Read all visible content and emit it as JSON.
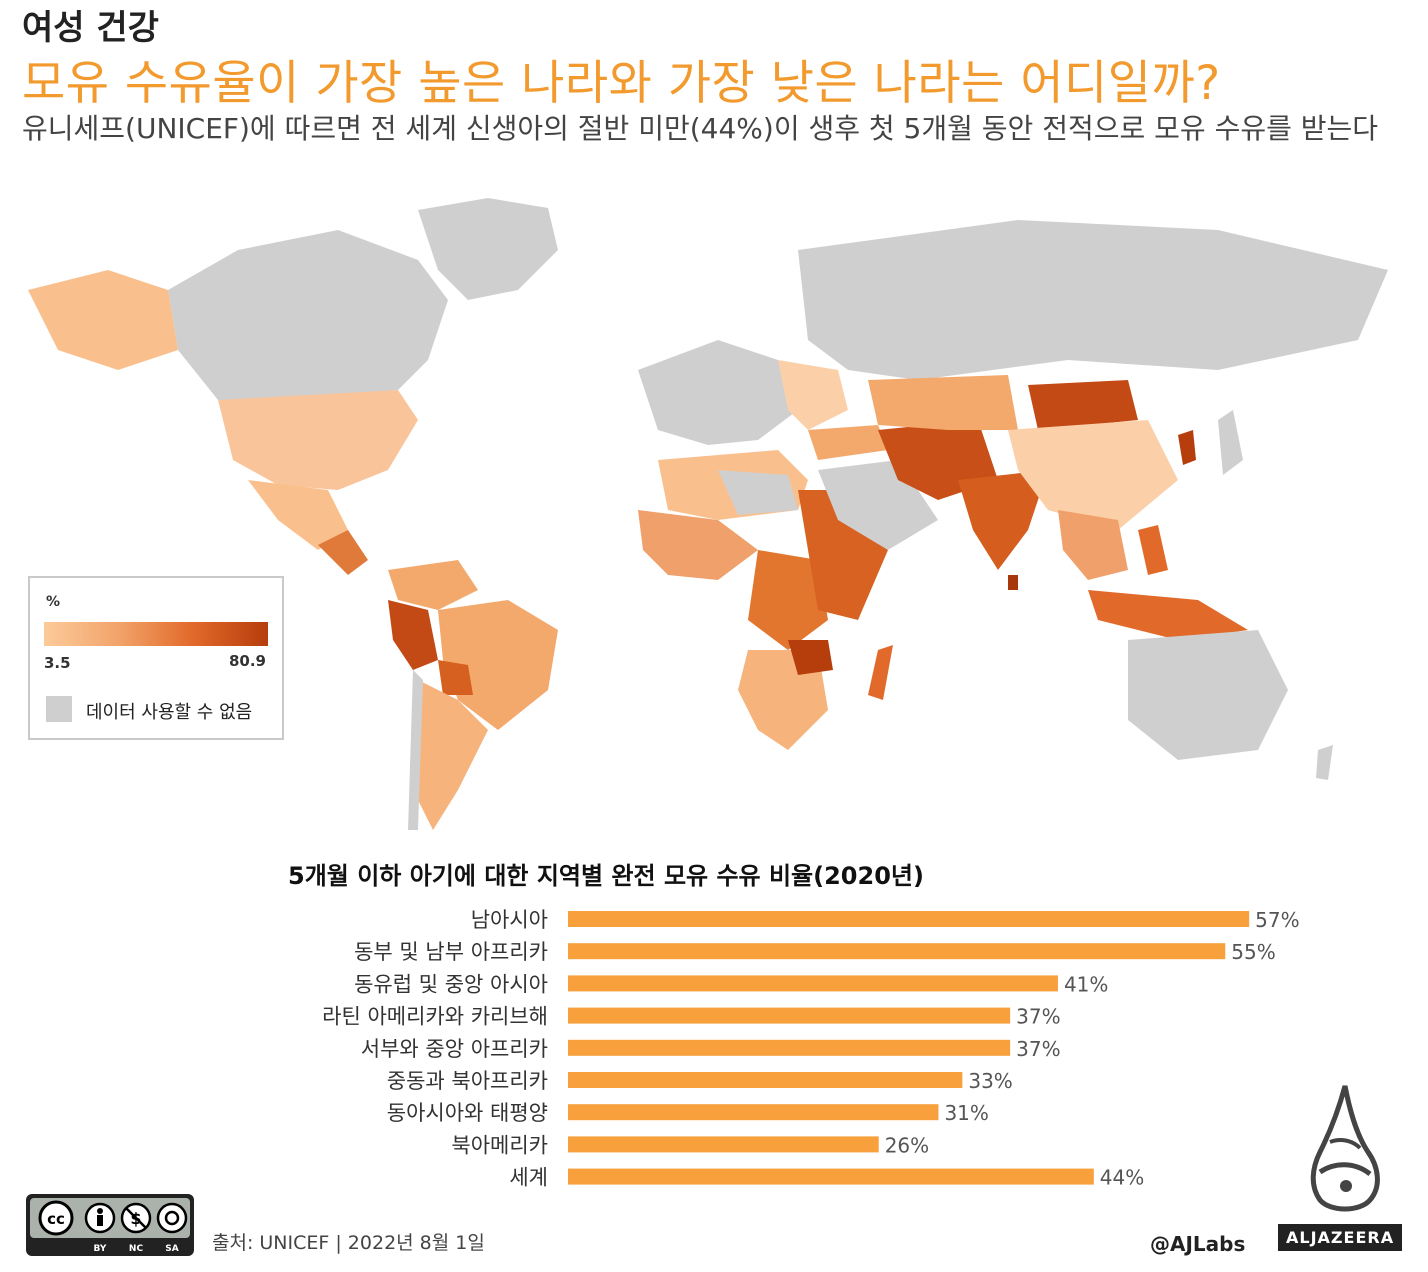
{
  "header": {
    "kicker": "여성 건강",
    "headline": "모유 수유율이 가장 높은 나라와 가장 낮은 나라는 어디일까?",
    "subtitle": "유니세프(UNICEF)에 따르면 전 세계 신생아의 절반 미만(44%)이 생후 첫 5개월 동안 전적으로 모유 수유를 받는다"
  },
  "map_legend": {
    "unit": "%",
    "min_label": "3.5",
    "max_label": "80.9",
    "no_data_label": "데이터 사용할 수 없음"
  },
  "colors": {
    "headline": "#f29a2e",
    "bar": "#f7a03c",
    "no_data": "#cfcfcf",
    "scale_low": "#fccb9a",
    "scale_high": "#b63d0c"
  },
  "chart_data": {
    "type": "bar",
    "orientation": "horizontal",
    "title": "5개월 이하 아기에 대한 지역별 완전 모유 수유 비율(2020년)",
    "categories": [
      "남아시아",
      "동부 및 남부 아프리카",
      "동유럽 및 중앙 아시아",
      "라틴 아메리카와 카리브해",
      "서부와 중앙 아프리카",
      "중동과 북아프리카",
      "동아시아와 태평양",
      "북아메리카",
      "세계"
    ],
    "values": [
      57,
      55,
      41,
      37,
      37,
      33,
      31,
      26,
      44
    ],
    "value_labels": [
      "57%",
      "55%",
      "41%",
      "37%",
      "37%",
      "33%",
      "31%",
      "26%",
      "44%"
    ],
    "xlim": [
      0,
      60
    ],
    "grid": false
  },
  "footer": {
    "license": "cc by nc sa",
    "source": "출처: UNICEF | 2022년 8월 1일",
    "handle": "@AJLabs",
    "brand": "ALJAZEERA"
  }
}
